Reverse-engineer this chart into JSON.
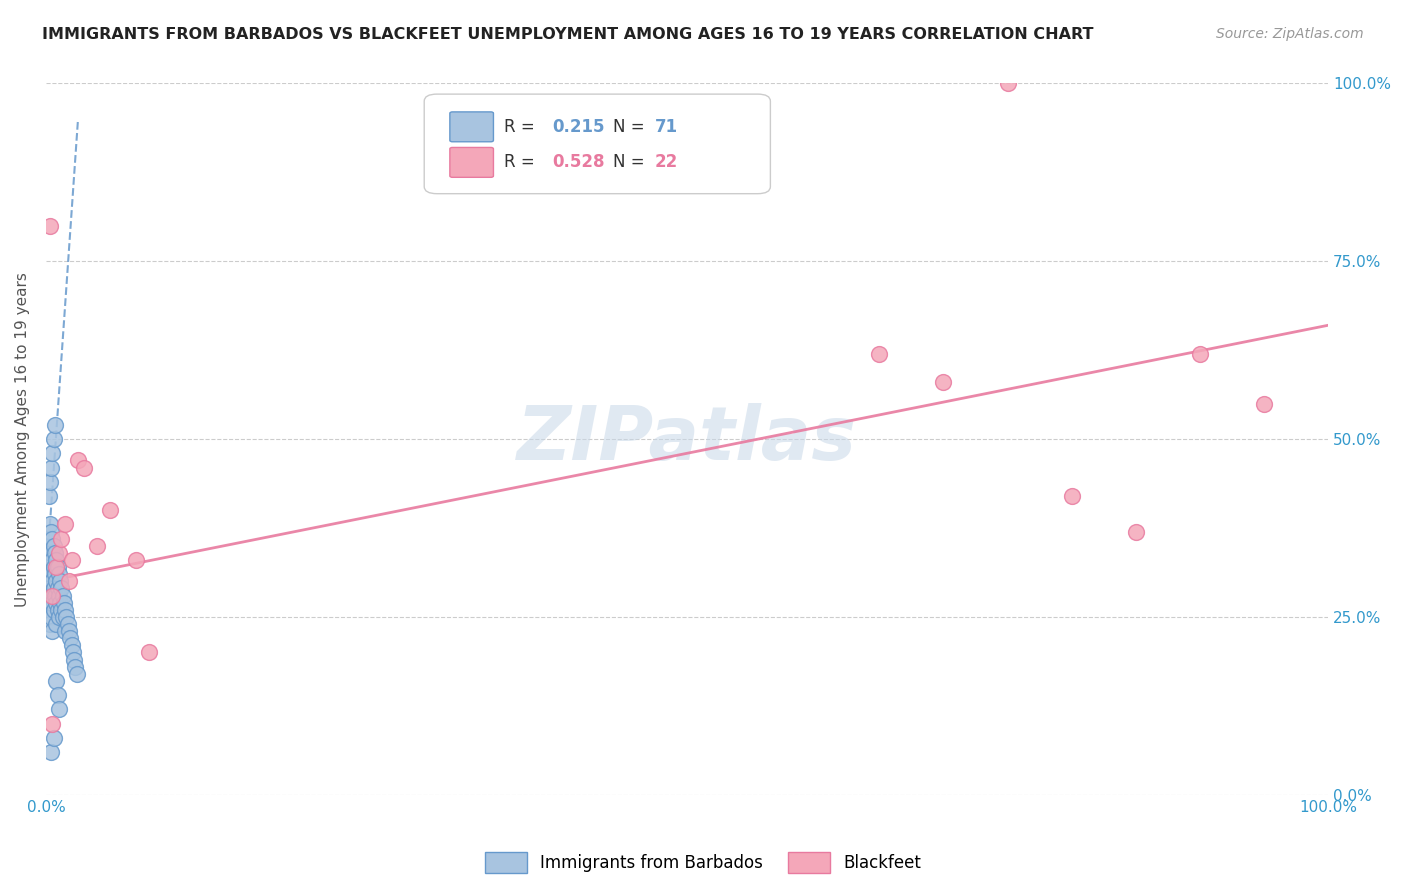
{
  "title": "IMMIGRANTS FROM BARBADOS VS BLACKFEET UNEMPLOYMENT AMONG AGES 16 TO 19 YEARS CORRELATION CHART",
  "source": "Source: ZipAtlas.com",
  "ylabel": "Unemployment Among Ages 16 to 19 years",
  "legend_label1": "Immigrants from Barbados",
  "legend_label2": "Blackfeet",
  "R1": 0.215,
  "N1": 71,
  "R2": 0.528,
  "N2": 22,
  "color1": "#a8c4e0",
  "color2": "#f4a7b9",
  "line_color1": "#6699cc",
  "line_color2": "#e87a9f",
  "watermark_text": "ZIPatlas",
  "xlim": [
    0,
    1
  ],
  "ylim": [
    0,
    1
  ],
  "barbados_x": [
    0.001,
    0.001,
    0.001,
    0.002,
    0.002,
    0.002,
    0.002,
    0.002,
    0.003,
    0.003,
    0.003,
    0.003,
    0.003,
    0.003,
    0.003,
    0.004,
    0.004,
    0.004,
    0.004,
    0.004,
    0.005,
    0.005,
    0.005,
    0.005,
    0.005,
    0.006,
    0.006,
    0.006,
    0.006,
    0.007,
    0.007,
    0.007,
    0.008,
    0.008,
    0.008,
    0.008,
    0.009,
    0.009,
    0.009,
    0.01,
    0.01,
    0.01,
    0.011,
    0.011,
    0.012,
    0.012,
    0.013,
    0.013,
    0.014,
    0.015,
    0.015,
    0.016,
    0.017,
    0.018,
    0.019,
    0.02,
    0.021,
    0.022,
    0.023,
    0.024,
    0.002,
    0.003,
    0.004,
    0.005,
    0.006,
    0.007,
    0.008,
    0.009,
    0.01,
    0.004,
    0.006
  ],
  "barbados_y": [
    0.33,
    0.3,
    0.28,
    0.36,
    0.34,
    0.32,
    0.3,
    0.27,
    0.38,
    0.35,
    0.33,
    0.31,
    0.28,
    0.26,
    0.24,
    0.37,
    0.34,
    0.31,
    0.28,
    0.25,
    0.36,
    0.33,
    0.3,
    0.27,
    0.23,
    0.35,
    0.32,
    0.29,
    0.26,
    0.34,
    0.31,
    0.28,
    0.33,
    0.3,
    0.27,
    0.24,
    0.32,
    0.29,
    0.26,
    0.31,
    0.28,
    0.25,
    0.3,
    0.27,
    0.29,
    0.26,
    0.28,
    0.25,
    0.27,
    0.26,
    0.23,
    0.25,
    0.24,
    0.23,
    0.22,
    0.21,
    0.2,
    0.19,
    0.18,
    0.17,
    0.42,
    0.44,
    0.46,
    0.48,
    0.5,
    0.52,
    0.16,
    0.14,
    0.12,
    0.06,
    0.08
  ],
  "blackfeet_x": [
    0.003,
    0.005,
    0.008,
    0.01,
    0.012,
    0.015,
    0.018,
    0.02,
    0.025,
    0.03,
    0.04,
    0.05,
    0.07,
    0.08,
    0.65,
    0.7,
    0.75,
    0.8,
    0.85,
    0.9,
    0.95,
    0.005
  ],
  "blackfeet_y": [
    0.8,
    0.28,
    0.32,
    0.34,
    0.36,
    0.38,
    0.3,
    0.33,
    0.47,
    0.46,
    0.35,
    0.4,
    0.33,
    0.2,
    0.62,
    0.58,
    1.0,
    0.42,
    0.37,
    0.62,
    0.55,
    0.1
  ],
  "blue_trend_x": [
    0.0,
    0.025
  ],
  "blue_trend_y": [
    0.3,
    0.95
  ],
  "pink_trend_x": [
    0.0,
    1.0
  ],
  "pink_trend_y": [
    0.3,
    0.66
  ]
}
